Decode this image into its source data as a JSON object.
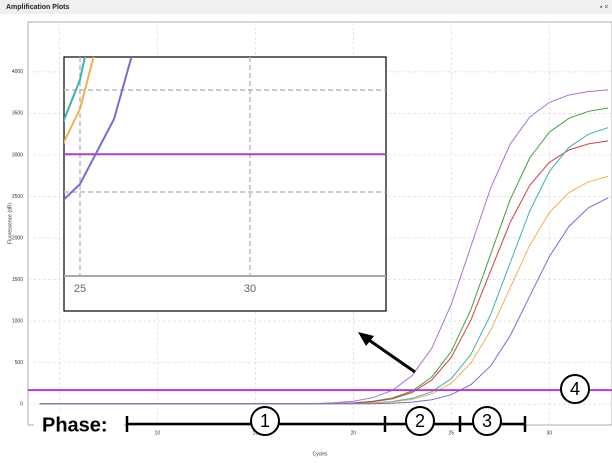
{
  "window_title": "Amplification Plots",
  "chart_data": {
    "type": "line",
    "y_label": "Fluorescence (dR)",
    "x_label": "Cycles",
    "x": [
      4,
      5,
      6,
      7,
      8,
      9,
      10,
      11,
      12,
      13,
      14,
      15,
      16,
      17,
      18,
      19,
      20,
      21,
      22,
      23,
      24,
      25,
      26,
      27,
      28,
      29,
      30,
      31,
      32,
      33
    ],
    "xlim": [
      3.4,
      33.2
    ],
    "ylim": [
      -250,
      4600
    ],
    "xticks": [
      5,
      10,
      15,
      20,
      25,
      30
    ],
    "yticks": [
      0,
      500,
      1000,
      1500,
      2000,
      2500,
      3000,
      3500,
      4000
    ],
    "grid": true,
    "threshold": 170,
    "threshold_color": "#b040c0",
    "series": [
      {
        "color": "#b070d0",
        "values": [
          5,
          5,
          5,
          5,
          5,
          5,
          5,
          5,
          5,
          5,
          5,
          5,
          5,
          5,
          8,
          17,
          37,
          79,
          168,
          344,
          672,
          1202,
          1900,
          2597,
          3128,
          3456,
          3632,
          3721,
          3763,
          3783
        ]
      },
      {
        "color": "#40a040",
        "values": [
          5,
          5,
          5,
          5,
          5,
          5,
          5,
          5,
          5,
          5,
          5,
          5,
          5,
          5,
          5,
          8,
          16,
          35,
          75,
          159,
          326,
          636,
          1139,
          1800,
          2460,
          2963,
          3274,
          3441,
          3525,
          3565
        ]
      },
      {
        "color": "#d04040",
        "values": [
          5,
          5,
          5,
          5,
          5,
          5,
          5,
          5,
          5,
          5,
          5,
          5,
          5,
          5,
          5,
          7,
          14,
          31,
          67,
          141,
          290,
          565,
          1012,
          1600,
          2187,
          2634,
          2910,
          3059,
          3133,
          3169
        ]
      },
      {
        "color": "#40b0b0",
        "values": [
          5,
          5,
          5,
          5,
          5,
          5,
          5,
          5,
          5,
          5,
          5,
          5,
          5,
          5,
          5,
          5,
          8,
          15,
          33,
          71,
          150,
          308,
          600,
          1075,
          1700,
          2323,
          2798,
          3092,
          3250,
          3329
        ]
      },
      {
        "color": "#f0b050",
        "values": [
          5,
          5,
          5,
          5,
          5,
          5,
          5,
          5,
          5,
          5,
          5,
          5,
          5,
          5,
          5,
          5,
          6,
          12,
          27,
          58,
          124,
          254,
          495,
          886,
          1400,
          1913,
          2305,
          2546,
          2677,
          2742
        ]
      },
      {
        "color": "#7070d0",
        "values": [
          5,
          5,
          5,
          5,
          5,
          5,
          5,
          5,
          5,
          5,
          5,
          5,
          5,
          5,
          5,
          5,
          5,
          6,
          12,
          25,
          54,
          115,
          235,
          459,
          822,
          1300,
          1776,
          2139,
          2364,
          2484
        ]
      }
    ],
    "inset": {
      "xlim": [
        24.53,
        34
      ],
      "ylim": [
        -120,
        350
      ],
      "xticks": [
        25,
        30
      ]
    }
  },
  "annotations": {
    "phase_label": "Phase:",
    "phases": [
      "1",
      "2",
      "3",
      "4"
    ]
  }
}
